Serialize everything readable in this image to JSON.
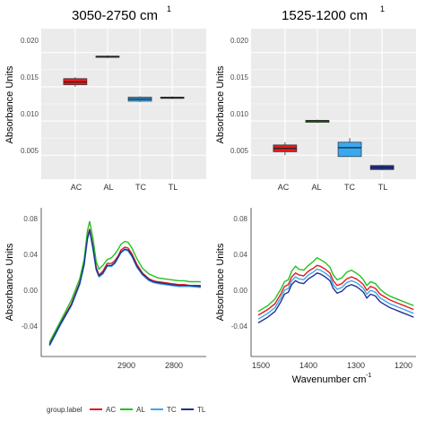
{
  "panels": {
    "box_left": {
      "title": "3050-2750 cm",
      "title_sup": "1",
      "ylabel": "Absorbance Units",
      "yticks": [
        "0.020",
        "0.015",
        "0.010",
        "0.005"
      ]
    },
    "box_right": {
      "title": "1525-1200 cm",
      "title_sup": "1",
      "ylabel": "Absorbance Units",
      "yticks": [
        "0.020",
        "0.015",
        "0.010",
        "0.005"
      ]
    },
    "spec_left": {
      "ylabel": "Absorbance Units",
      "yticks": [
        "0.08",
        "0.04",
        "0.00",
        "-0.04"
      ],
      "xticks": [
        "2900",
        "2800"
      ]
    },
    "spec_right": {
      "ylabel": "Absorbance Units",
      "xlabel": "Wavenumber cm",
      "xlabel_sup": "-1",
      "yticks": [
        "0.08",
        "0.04",
        "0.00",
        "-0.04"
      ],
      "xticks": [
        "1500",
        "1400",
        "1300",
        "1200"
      ]
    }
  },
  "legend": {
    "title": "group.label",
    "items": [
      {
        "label": "AC",
        "color": "#e31a1c"
      },
      {
        "label": "AL",
        "color": "#22c122"
      },
      {
        "label": "TC",
        "color": "#38a8f0"
      },
      {
        "label": "TL",
        "color": "#22318f"
      }
    ]
  },
  "chart_data": [
    {
      "type": "box",
      "title": "3050-2750 cm 1",
      "xlabel": "",
      "ylabel": "Absorbance Units",
      "ylim": [
        0.0015,
        0.0235
      ],
      "categories": [
        "AC",
        "AL",
        "TC",
        "TL"
      ],
      "colors": [
        "#e31a1c",
        "#22c122",
        "#38a8f0",
        "#22318f"
      ],
      "boxes": [
        {
          "min": 0.015,
          "q1": 0.0153,
          "median": 0.0157,
          "q3": 0.0162,
          "max": 0.0164
        },
        {
          "min": 0.0192,
          "q1": 0.0193,
          "median": 0.0194,
          "q3": 0.0195,
          "max": 0.0196
        },
        {
          "min": 0.0128,
          "q1": 0.0129,
          "median": 0.0132,
          "q3": 0.0135,
          "max": 0.0136
        },
        {
          "min": 0.0132,
          "q1": 0.0133,
          "median": 0.0134,
          "q3": 0.0135,
          "max": 0.0136
        }
      ],
      "grid": true
    },
    {
      "type": "box",
      "title": "1525-1200 cm 1",
      "xlabel": "",
      "ylabel": "Absorbance Units",
      "ylim": [
        0.0015,
        0.0235
      ],
      "categories": [
        "AC",
        "AL",
        "TC",
        "TL"
      ],
      "colors": [
        "#e31a1c",
        "#22c122",
        "#38a8f0",
        "#22318f"
      ],
      "boxes": [
        {
          "min": 0.005,
          "q1": 0.0055,
          "median": 0.006,
          "q3": 0.0065,
          "max": 0.0069
        },
        {
          "min": 0.0097,
          "q1": 0.0098,
          "median": 0.01,
          "q3": 0.0101,
          "max": 0.0102
        },
        {
          "min": 0.0048,
          "q1": 0.0048,
          "median": 0.0061,
          "q3": 0.0069,
          "max": 0.0075
        },
        {
          "min": 0.0028,
          "q1": 0.0029,
          "median": 0.0032,
          "q3": 0.0035,
          "max": 0.0036
        }
      ],
      "grid": true
    },
    {
      "type": "line",
      "title": "",
      "xlabel": "",
      "ylabel": "Absorbance Units",
      "xlim": [
        3050,
        2750
      ],
      "ylim": [
        -0.065,
        0.09
      ],
      "x": [
        3035,
        3015,
        2995,
        2980,
        2972,
        2966,
        2962,
        2956,
        2950,
        2945,
        2938,
        2930,
        2922,
        2916,
        2910,
        2905,
        2898,
        2892,
        2885,
        2876,
        2866,
        2854,
        2846,
        2838,
        2826,
        2814,
        2800,
        2790,
        2780,
        2760
      ],
      "series": [
        {
          "name": "AC",
          "color": "#e31a1c",
          "values": [
            -0.052,
            -0.03,
            -0.01,
            0.012,
            0.032,
            0.06,
            0.068,
            0.05,
            0.028,
            0.02,
            0.024,
            0.032,
            0.032,
            0.035,
            0.04,
            0.046,
            0.049,
            0.048,
            0.042,
            0.031,
            0.022,
            0.016,
            0.014,
            0.013,
            0.012,
            0.011,
            0.01,
            0.01,
            0.009,
            0.009
          ]
        },
        {
          "name": "AL",
          "color": "#22c122",
          "values": [
            -0.05,
            -0.028,
            -0.006,
            0.016,
            0.036,
            0.066,
            0.076,
            0.058,
            0.034,
            0.026,
            0.03,
            0.036,
            0.038,
            0.042,
            0.047,
            0.052,
            0.055,
            0.054,
            0.048,
            0.037,
            0.027,
            0.021,
            0.019,
            0.017,
            0.016,
            0.015,
            0.014,
            0.014,
            0.013,
            0.013
          ]
        },
        {
          "name": "TC",
          "color": "#38a8f0",
          "values": [
            -0.054,
            -0.032,
            -0.012,
            0.01,
            0.03,
            0.057,
            0.066,
            0.047,
            0.025,
            0.018,
            0.021,
            0.029,
            0.029,
            0.032,
            0.038,
            0.043,
            0.046,
            0.045,
            0.039,
            0.028,
            0.02,
            0.014,
            0.012,
            0.011,
            0.01,
            0.009,
            0.008,
            0.008,
            0.008,
            0.007
          ]
        },
        {
          "name": "TL",
          "color": "#22318f",
          "values": [
            -0.053,
            -0.031,
            -0.011,
            0.011,
            0.031,
            0.058,
            0.067,
            0.048,
            0.026,
            0.019,
            0.022,
            0.03,
            0.03,
            0.033,
            0.039,
            0.044,
            0.047,
            0.046,
            0.04,
            0.029,
            0.021,
            0.015,
            0.013,
            0.012,
            0.011,
            0.01,
            0.009,
            0.009,
            0.009,
            0.008
          ]
        }
      ],
      "grid": false
    },
    {
      "type": "line",
      "title": "",
      "xlabel": "Wavenumber cm -1",
      "ylabel": "Absorbance Units",
      "xlim": [
        1540,
        1195
      ],
      "ylim": [
        -0.065,
        0.09
      ],
      "x": [
        1525,
        1505,
        1490,
        1478,
        1470,
        1462,
        1455,
        1447,
        1440,
        1430,
        1420,
        1410,
        1402,
        1395,
        1385,
        1375,
        1368,
        1360,
        1350,
        1340,
        1330,
        1320,
        1312,
        1305,
        1298,
        1290,
        1280,
        1270,
        1260,
        1250,
        1240,
        1230,
        1220,
        1210,
        1200
      ],
      "series": [
        {
          "name": "AC",
          "color": "#e31a1c",
          "values": [
            -0.022,
            -0.016,
            -0.01,
            0.0,
            0.008,
            0.01,
            0.018,
            0.022,
            0.02,
            0.019,
            0.024,
            0.027,
            0.03,
            0.029,
            0.026,
            0.022,
            0.014,
            0.009,
            0.011,
            0.016,
            0.018,
            0.016,
            0.013,
            0.01,
            0.004,
            0.008,
            0.006,
            0.0,
            -0.003,
            -0.006,
            -0.008,
            -0.01,
            -0.012,
            -0.014,
            -0.016
          ]
        },
        {
          "name": "AL",
          "color": "#22c122",
          "values": [
            -0.018,
            -0.012,
            -0.005,
            0.005,
            0.013,
            0.015,
            0.024,
            0.029,
            0.026,
            0.025,
            0.03,
            0.034,
            0.038,
            0.036,
            0.033,
            0.028,
            0.02,
            0.015,
            0.017,
            0.023,
            0.025,
            0.022,
            0.019,
            0.015,
            0.009,
            0.013,
            0.011,
            0.005,
            0.001,
            -0.002,
            -0.004,
            -0.006,
            -0.008,
            -0.01,
            -0.012
          ]
        },
        {
          "name": "TC",
          "color": "#38a8f0",
          "values": [
            -0.026,
            -0.02,
            -0.014,
            -0.004,
            0.004,
            0.006,
            0.014,
            0.018,
            0.016,
            0.015,
            0.02,
            0.023,
            0.026,
            0.025,
            0.022,
            0.018,
            0.01,
            0.005,
            0.007,
            0.012,
            0.014,
            0.012,
            0.009,
            0.006,
            0.0,
            0.004,
            0.002,
            -0.004,
            -0.007,
            -0.01,
            -0.012,
            -0.014,
            -0.016,
            -0.018,
            -0.02
          ]
        },
        {
          "name": "TL",
          "color": "#22318f",
          "values": [
            -0.03,
            -0.024,
            -0.018,
            -0.008,
            0.0,
            0.002,
            0.01,
            0.014,
            0.012,
            0.011,
            0.016,
            0.019,
            0.022,
            0.021,
            0.018,
            0.014,
            0.006,
            0.001,
            0.003,
            0.008,
            0.01,
            0.008,
            0.005,
            0.002,
            -0.004,
            0.0,
            -0.002,
            -0.008,
            -0.011,
            -0.014,
            -0.016,
            -0.018,
            -0.02,
            -0.022,
            -0.024
          ]
        }
      ],
      "grid": false
    }
  ]
}
